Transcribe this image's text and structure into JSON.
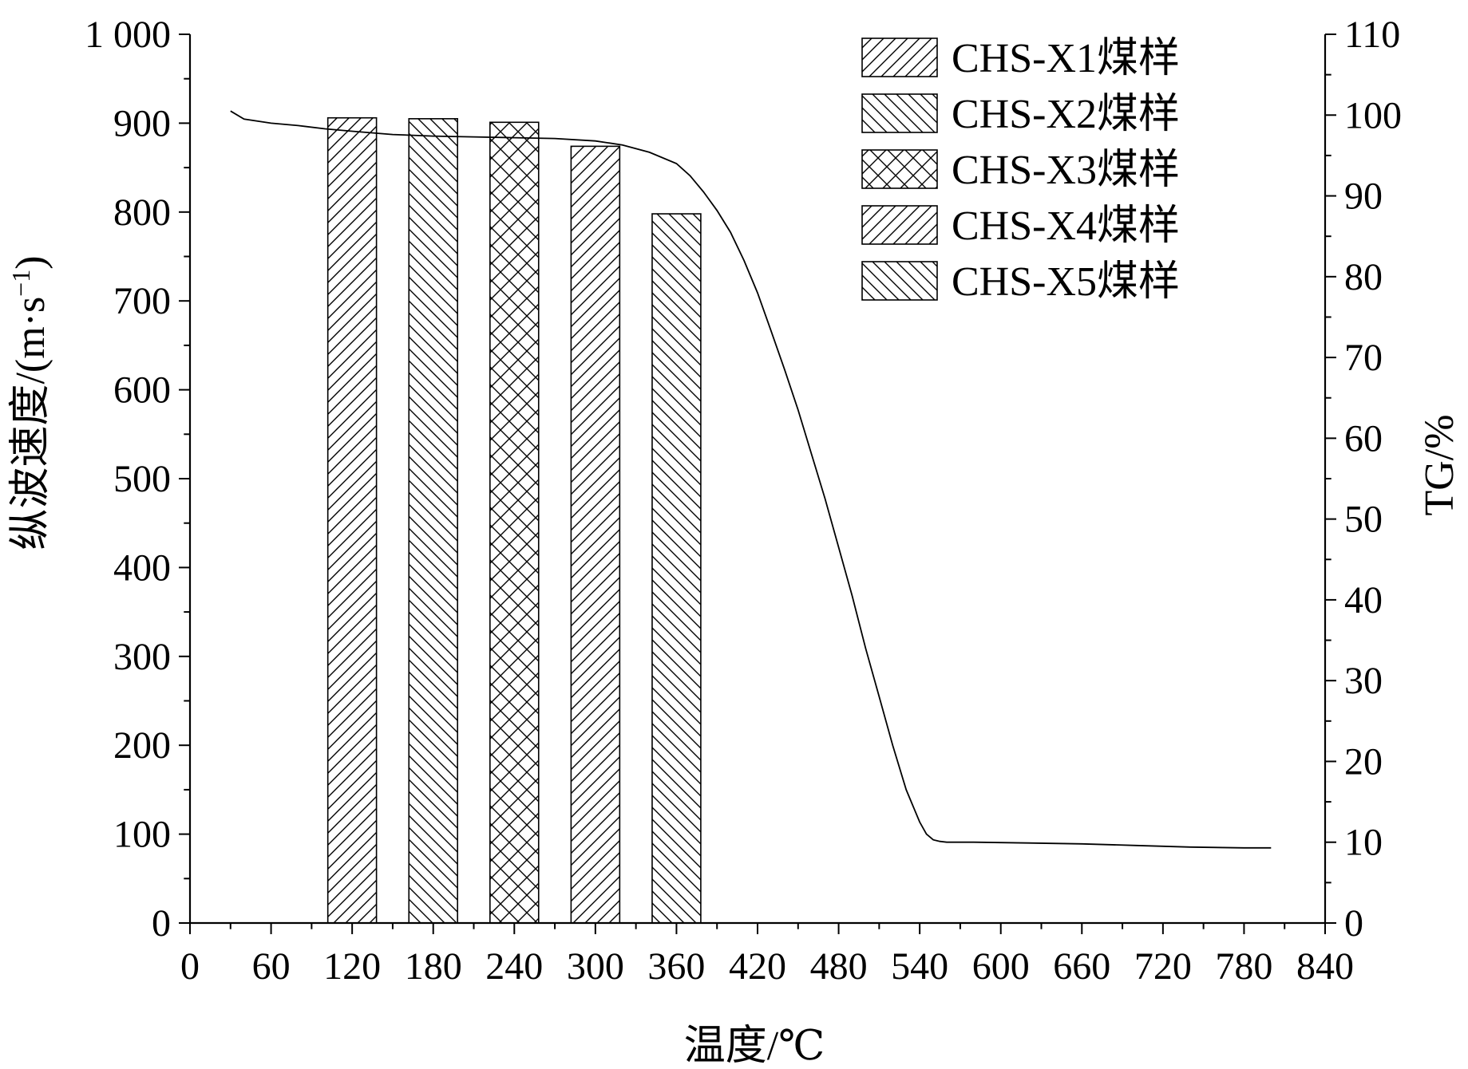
{
  "chart_data": {
    "type": "bar",
    "xlabel": "温度/℃",
    "ylabel": "纵波速度/(m·s",
    "ylabel_sup": "−1",
    "ylabel_close": ")",
    "y2label": "TG/%",
    "xlim": [
      0,
      840
    ],
    "ylim": [
      0,
      1000
    ],
    "y2lim": [
      0,
      110
    ],
    "x_ticks": [
      0,
      60,
      120,
      180,
      240,
      300,
      360,
      420,
      480,
      540,
      600,
      660,
      720,
      780,
      840
    ],
    "x_tick_labels": [
      "0",
      "60",
      "120",
      "180",
      "240",
      "300",
      "360",
      "420",
      "480",
      "540",
      "600",
      "660",
      "720",
      "780",
      "840"
    ],
    "y_ticks": [
      0,
      100,
      200,
      300,
      400,
      500,
      600,
      700,
      800,
      900,
      1000
    ],
    "y_tick_labels": [
      "0",
      "100",
      "200",
      "300",
      "400",
      "500",
      "600",
      "700",
      "800",
      "900",
      "1 000"
    ],
    "y2_ticks": [
      0,
      10,
      20,
      30,
      40,
      50,
      60,
      70,
      80,
      90,
      100,
      110
    ],
    "y2_tick_labels": [
      "0",
      "10",
      "20",
      "30",
      "40",
      "50",
      "60",
      "70",
      "80",
      "90",
      "100",
      "110"
    ],
    "grid": false,
    "legend_position": "top-right",
    "bars": [
      {
        "name": "CHS-X1煤样",
        "x": 120,
        "value": 906,
        "pattern": "fwd"
      },
      {
        "name": "CHS-X2煤样",
        "x": 180,
        "value": 905,
        "pattern": "back"
      },
      {
        "name": "CHS-X3煤样",
        "x": 240,
        "value": 901,
        "pattern": "cross"
      },
      {
        "name": "CHS-X4煤样",
        "x": 300,
        "value": 874,
        "pattern": "fwd"
      },
      {
        "name": "CHS-X5煤样",
        "x": 360,
        "value": 798,
        "pattern": "back"
      }
    ],
    "bar_width": 36,
    "tg_curve": {
      "axis": "right",
      "x": [
        30,
        40,
        60,
        80,
        100,
        120,
        150,
        180,
        210,
        240,
        270,
        300,
        320,
        340,
        360,
        370,
        380,
        390,
        400,
        410,
        420,
        430,
        440,
        450,
        460,
        470,
        480,
        490,
        500,
        510,
        520,
        530,
        540,
        545,
        550,
        555,
        560,
        580,
        620,
        660,
        700,
        740,
        780,
        800
      ],
      "y": [
        100.5,
        99.5,
        99.0,
        98.7,
        98.3,
        98.0,
        97.6,
        97.4,
        97.3,
        97.2,
        97.1,
        96.8,
        96.3,
        95.4,
        94.0,
        92.5,
        90.5,
        88.2,
        85.5,
        82.0,
        78.0,
        73.3,
        68.5,
        63.5,
        58.0,
        52.5,
        46.5,
        40.5,
        34.0,
        28.0,
        22.0,
        16.5,
        12.5,
        11.0,
        10.3,
        10.1,
        10.0,
        10.0,
        9.9,
        9.8,
        9.6,
        9.4,
        9.3,
        9.3
      ]
    }
  }
}
